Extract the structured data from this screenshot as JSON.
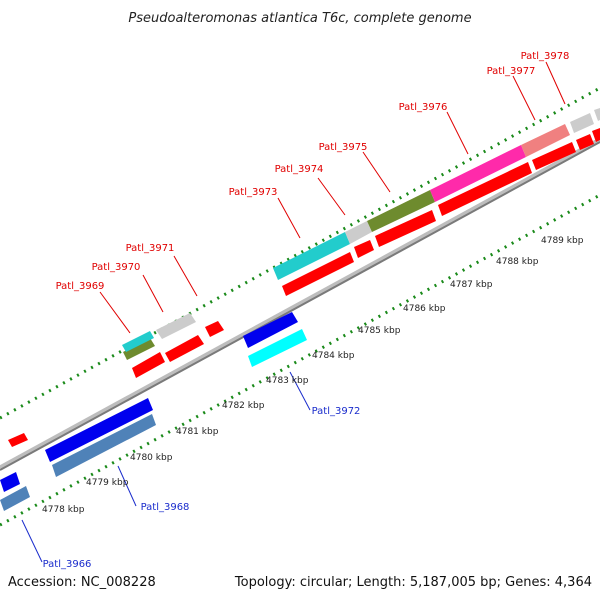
{
  "title": "Pseudoalteromonas atlantica T6c, complete genome",
  "accession": "Accession: NC_008228",
  "summary": "Topology: circular; Length: 5,187,005 bp; Genes: 4,364",
  "ticks": [
    "4778 kbp",
    "4779 kbp",
    "4780 kbp",
    "4781 kbp",
    "4782 kbp",
    "4783 kbp",
    "4784 kbp",
    "4785 kbp",
    "4786 kbp",
    "4787 kbp",
    "4788 kbp",
    "4789 kbp"
  ],
  "gene_labels_top": [
    "Patl_3969",
    "Patl_3970",
    "Patl_3971",
    "Patl_3973",
    "Patl_3974",
    "Patl_3975",
    "Patl_3976",
    "Patl_3977",
    "Patl_3978"
  ],
  "gene_labels_bottom": [
    "Patl_3966",
    "Patl_3968",
    "Patl_3972"
  ],
  "colors": {
    "backbone": "#8a8a8a",
    "cds_forward": "#ff0000",
    "cds_reverse": "#0000ee",
    "cyan": "#22cccc",
    "steelblue": "#4f82b8",
    "olive": "#6e8b2e",
    "gray": "#cccccc",
    "magenta": "#ff2aaa",
    "salmon": "#f08080",
    "tick_green": "#1a8a1a",
    "label_red": "#e00000",
    "label_blue": "#1a2ccc"
  }
}
